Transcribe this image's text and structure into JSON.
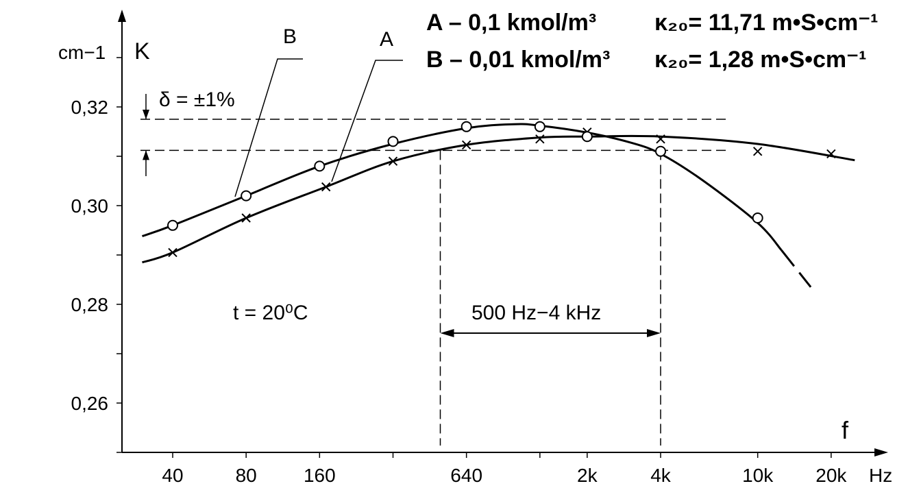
{
  "chart_data": {
    "type": "line",
    "title": "",
    "xlabel": "f",
    "ylabel": "K",
    "y_unit": "cm−1",
    "x_scale": "log",
    "x_unit": "Hz",
    "x_ticks": [
      40,
      80,
      160,
      320,
      640,
      1280,
      2000,
      4000,
      10000,
      20000
    ],
    "x_tick_labels": [
      "40",
      "80",
      "160",
      "",
      "640",
      "",
      "2k",
      "4k",
      "10k",
      "20k"
    ],
    "ylim": [
      0.25,
      0.33
    ],
    "y_ticks": [
      0.26,
      0.28,
      0.3,
      0.32
    ],
    "y_tick_labels": [
      "0,26",
      "0,28",
      "0,30",
      "0,32"
    ],
    "grid": false,
    "series": [
      {
        "name": "A",
        "marker": "x",
        "points": [
          [
            40,
            0.2905
          ],
          [
            80,
            0.2975
          ],
          [
            170,
            0.3038
          ],
          [
            320,
            0.309
          ],
          [
            640,
            0.3123
          ],
          [
            1280,
            0.3135
          ],
          [
            2000,
            0.3149
          ],
          [
            4000,
            0.3135
          ],
          [
            10000,
            0.311
          ],
          [
            20000,
            0.3105
          ]
        ],
        "curve": [
          [
            30,
            0.2885
          ],
          [
            40,
            0.2905
          ],
          [
            80,
            0.2975
          ],
          [
            170,
            0.3038
          ],
          [
            320,
            0.309
          ],
          [
            640,
            0.3123
          ],
          [
            1280,
            0.3138
          ],
          [
            2000,
            0.314
          ],
          [
            4000,
            0.314
          ],
          [
            10000,
            0.3125
          ],
          [
            25000,
            0.3092
          ]
        ]
      },
      {
        "name": "B",
        "marker": "o",
        "points": [
          [
            40,
            0.296
          ],
          [
            80,
            0.302
          ],
          [
            160,
            0.308
          ],
          [
            320,
            0.313
          ],
          [
            640,
            0.316
          ],
          [
            1280,
            0.316
          ],
          [
            2000,
            0.314
          ],
          [
            4000,
            0.311
          ],
          [
            10000,
            0.2975
          ]
        ],
        "curve": [
          [
            30,
            0.2938
          ],
          [
            40,
            0.296
          ],
          [
            80,
            0.302
          ],
          [
            160,
            0.308
          ],
          [
            320,
            0.3125
          ],
          [
            640,
            0.3157
          ],
          [
            1000,
            0.3165
          ],
          [
            1280,
            0.3162
          ],
          [
            2000,
            0.3148
          ],
          [
            3000,
            0.3128
          ],
          [
            4000,
            0.3105
          ],
          [
            6000,
            0.305
          ],
          [
            10000,
            0.2965
          ],
          [
            12500,
            0.291
          ]
        ],
        "dashed_tail": [
          [
            12500,
            0.291
          ],
          [
            16500,
            0.2835
          ]
        ]
      }
    ],
    "annotations": {
      "tolerance_label": "δ = ±1%",
      "tolerance_band": [
        0.3112,
        0.3175
      ],
      "temperature_label": "t = 20⁰C",
      "band_range": [
        500,
        4000
      ],
      "band_label": "500 Hz−4 kHz"
    },
    "legend": [
      {
        "name": "A",
        "text": "A – 0,1 kmol/m³",
        "kappa": "κ₂₀= 11,71 m•S•cm⁻¹"
      },
      {
        "name": "B",
        "text": "B – 0,01 kmol/m³",
        "kappa": "κ₂₀= 1,28 m•S•cm⁻¹"
      }
    ],
    "legend_position": "top-right",
    "curve_labels": [
      "A",
      "B"
    ]
  }
}
